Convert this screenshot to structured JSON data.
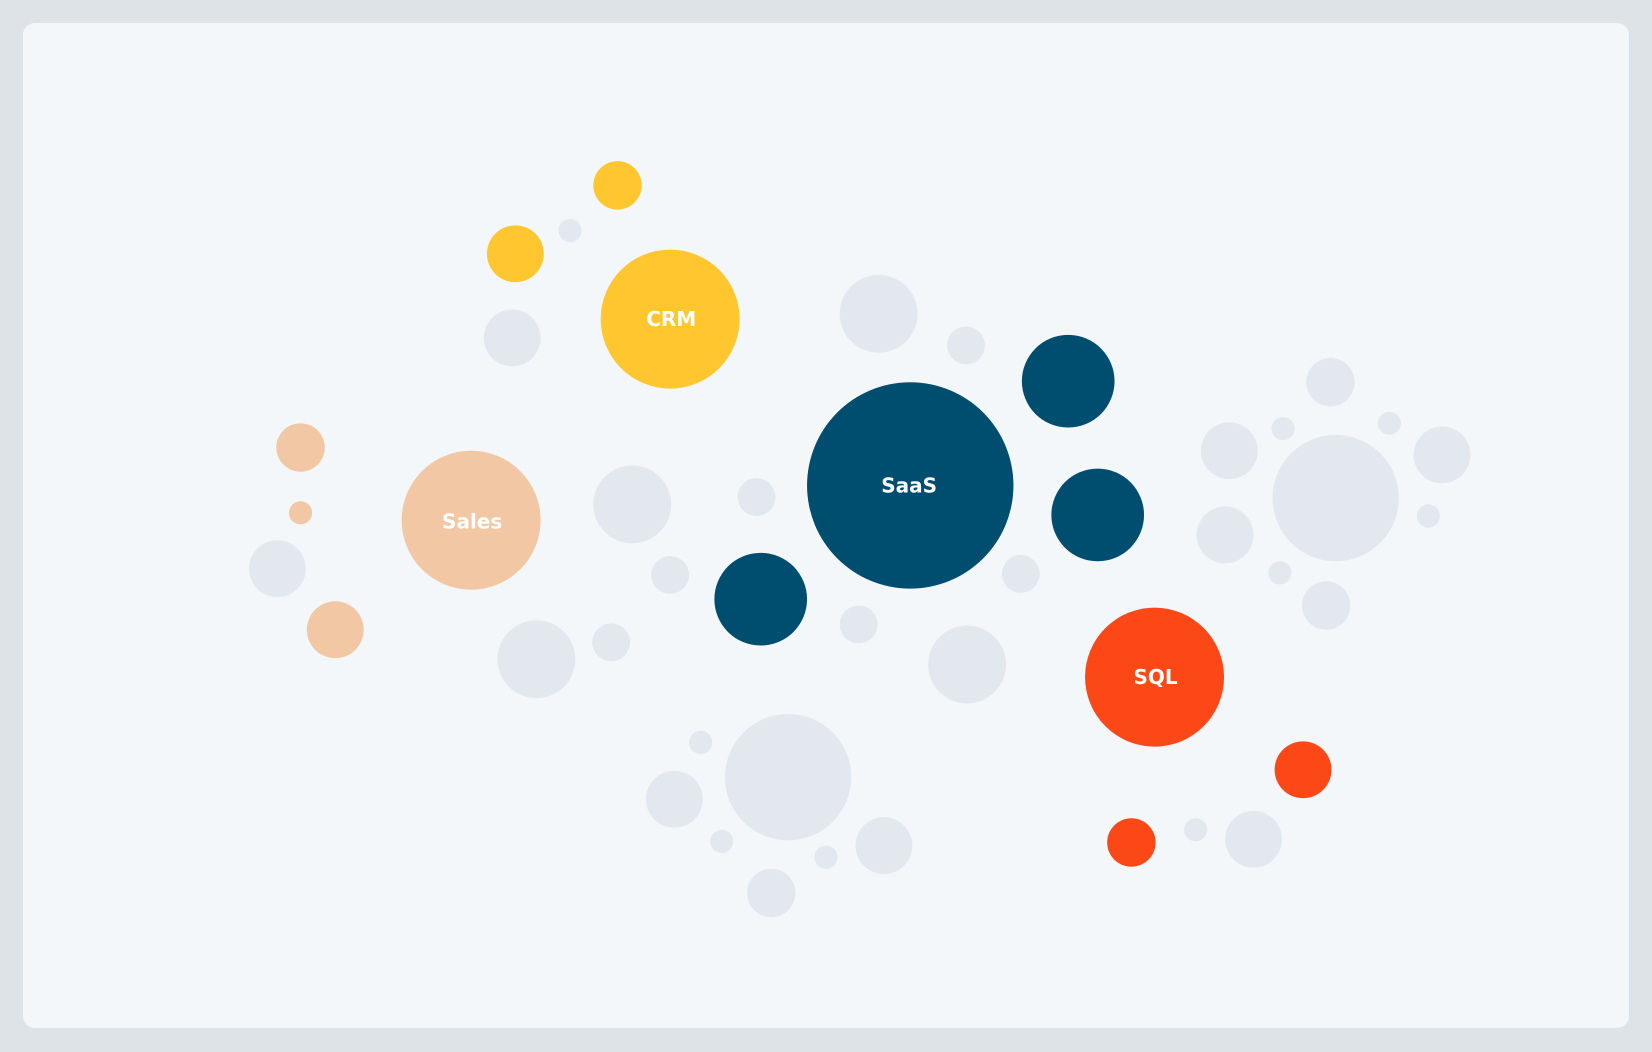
{
  "diagram": {
    "type": "bubble-cluster",
    "colors": {
      "background": "#f4f7fa",
      "frame": "#dde3e7",
      "neutral": "#e3e8ef",
      "crm": "#ffc62f",
      "sales": "#f2c7a3",
      "saas": "#004e6f",
      "sql": "#fc4716"
    },
    "labels": {
      "crm": "CRM",
      "sales": "Sales",
      "saas": "SaaS",
      "sql": "SQL"
    }
  }
}
